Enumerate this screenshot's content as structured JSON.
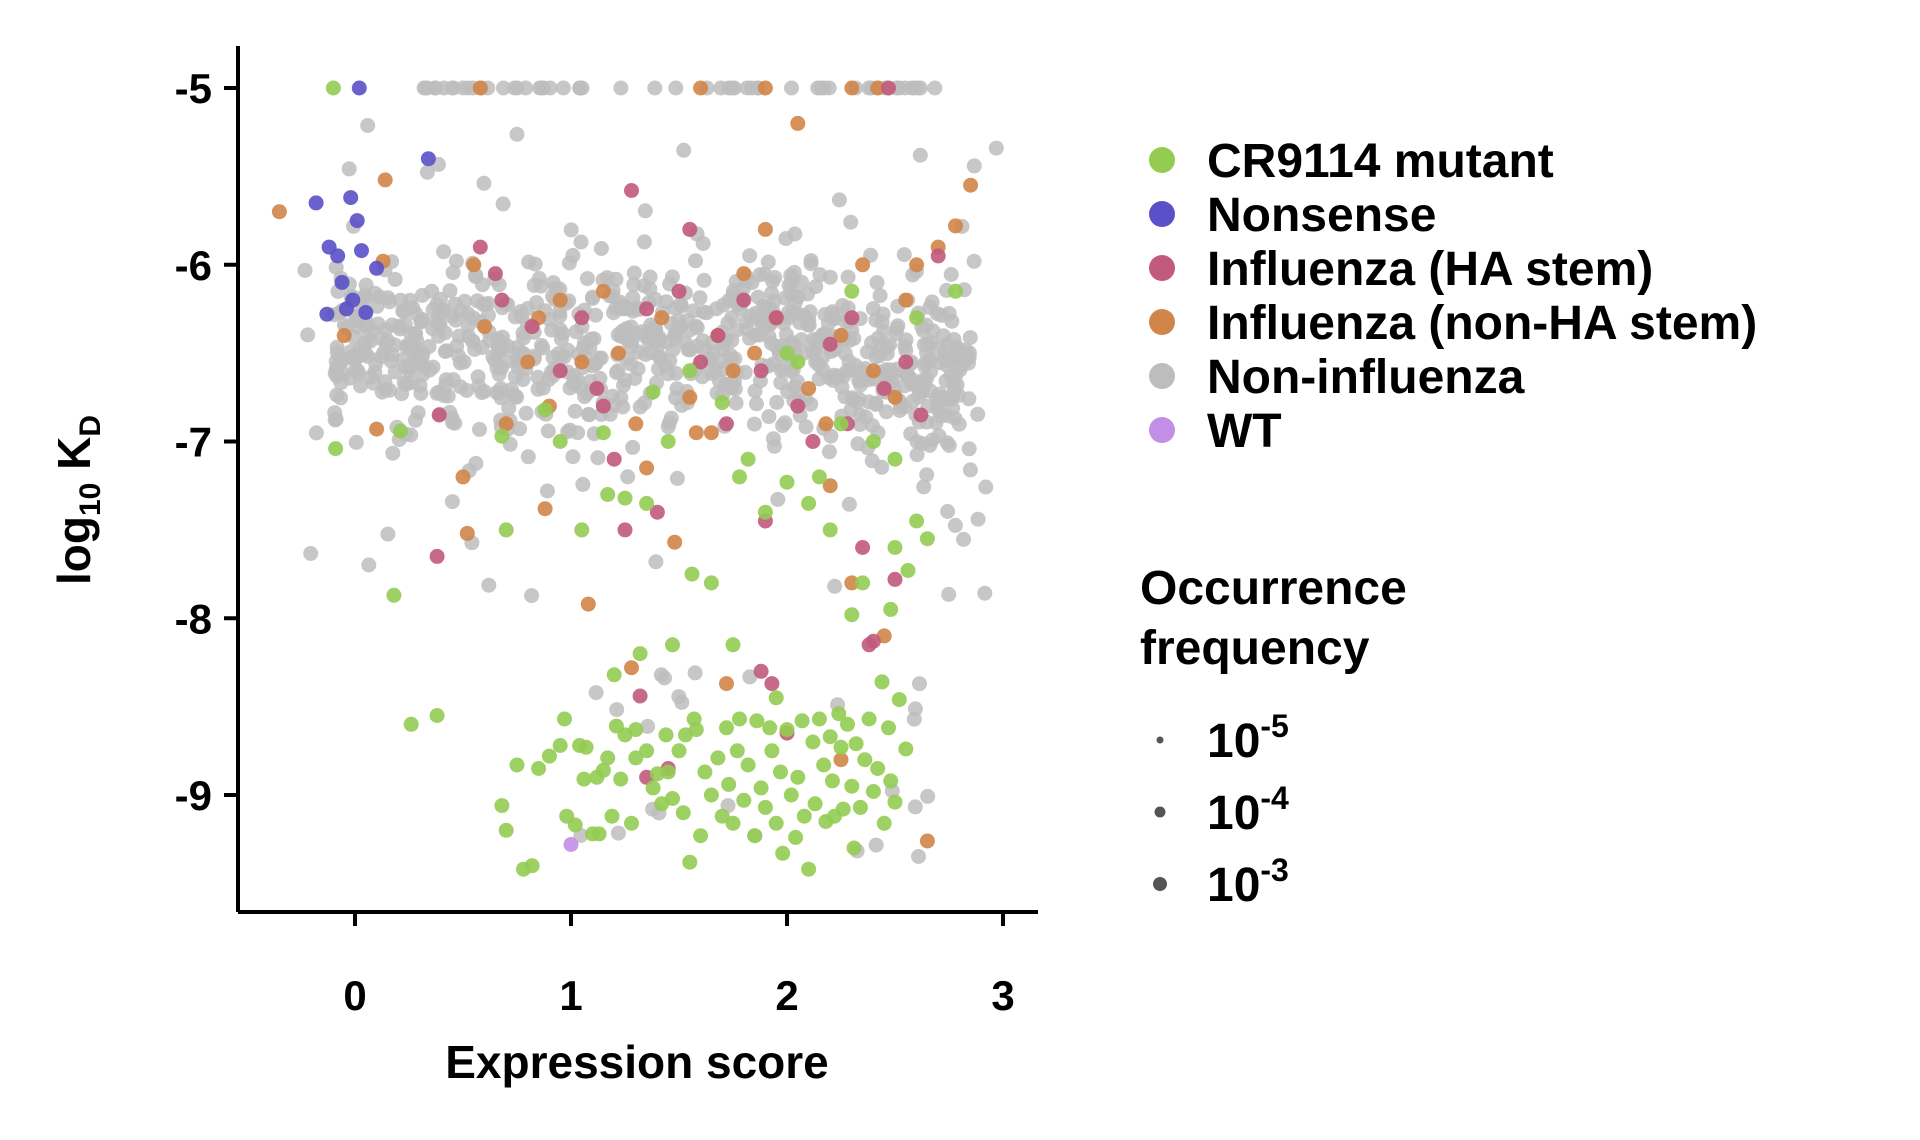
{
  "chart_data": {
    "type": "scatter",
    "title": "",
    "xlabel": "Expression score",
    "ylabel_base": "log",
    "ylabel_sub": "10",
    "ylabel_k": " K",
    "ylabel_ksub": "D",
    "xlim": [
      -0.55,
      3.2
    ],
    "ylim": [
      -9.68,
      -4.77
    ],
    "x_ticks": [
      0,
      1,
      2,
      3
    ],
    "x_tick_labels": [
      "0",
      "1",
      "2",
      "3"
    ],
    "y_ticks": [
      -5,
      -6,
      -7,
      -8,
      -9
    ],
    "y_tick_labels": [
      "-5",
      "-6",
      "-7",
      "-8",
      "-9"
    ],
    "grid": false,
    "legend_position": "right",
    "series": [
      {
        "name": "CR9114 mutant",
        "color": "#94cc52"
      },
      {
        "name": "Nonsense",
        "color": "#5a50c8"
      },
      {
        "name": "Influenza (HA stem)",
        "color": "#c15a7c"
      },
      {
        "name": "Influenza (non-HA stem)",
        "color": "#d28548"
      },
      {
        "name": "Non-influenza",
        "color": "#bdbdbd"
      },
      {
        "name": "WT",
        "color": "#c38ee6"
      }
    ],
    "size_legend": {
      "title_line1": "Occurrence",
      "title_line2": "frequency",
      "base": "10",
      "entries": [
        {
          "exponent": "-5",
          "marker_color": "#555555"
        },
        {
          "exponent": "-4",
          "marker_color": "#555555"
        },
        {
          "exponent": "-3",
          "marker_color": "#555555"
        }
      ]
    },
    "points": {
      "CR9114 mutant": [
        [
          -0.1,
          -5.0
        ],
        [
          -0.09,
          -7.04
        ],
        [
          0.21,
          -6.94
        ],
        [
          0.18,
          -7.87
        ],
        [
          0.26,
          -8.6
        ],
        [
          0.38,
          -8.55
        ],
        [
          0.68,
          -6.97
        ],
        [
          0.7,
          -7.5
        ],
        [
          0.68,
          -9.06
        ],
        [
          0.7,
          -9.2
        ],
        [
          0.75,
          -8.83
        ],
        [
          0.78,
          -9.42
        ],
        [
          0.82,
          -9.4
        ],
        [
          0.85,
          -8.85
        ],
        [
          0.9,
          -8.78
        ],
        [
          0.95,
          -8.72
        ],
        [
          0.98,
          -9.12
        ],
        [
          0.97,
          -8.57
        ],
        [
          1.02,
          -9.17
        ],
        [
          1.04,
          -8.72
        ],
        [
          1.06,
          -8.91
        ],
        [
          1.07,
          -8.73
        ],
        [
          1.1,
          -9.22
        ],
        [
          1.12,
          -8.9
        ],
        [
          1.13,
          -9.22
        ],
        [
          1.15,
          -8.86
        ],
        [
          1.17,
          -8.79
        ],
        [
          1.19,
          -9.12
        ],
        [
          1.2,
          -8.32
        ],
        [
          1.21,
          -8.61
        ],
        [
          1.23,
          -8.91
        ],
        [
          1.25,
          -8.66
        ],
        [
          1.28,
          -9.16
        ],
        [
          1.3,
          -8.79
        ],
        [
          1.3,
          -8.63
        ],
        [
          1.32,
          -8.2
        ],
        [
          1.35,
          -8.75
        ],
        [
          1.38,
          -8.96
        ],
        [
          1.4,
          -8.88
        ],
        [
          1.42,
          -9.05
        ],
        [
          1.44,
          -8.66
        ],
        [
          1.45,
          -8.87
        ],
        [
          1.47,
          -9.02
        ],
        [
          1.5,
          -8.75
        ],
        [
          1.52,
          -9.1
        ],
        [
          1.53,
          -8.66
        ],
        [
          1.55,
          -9.38
        ],
        [
          1.57,
          -8.57
        ],
        [
          1.6,
          -9.23
        ],
        [
          1.58,
          -8.63
        ],
        [
          1.62,
          -8.87
        ],
        [
          1.65,
          -9.0
        ],
        [
          1.68,
          -8.79
        ],
        [
          1.7,
          -9.12
        ],
        [
          1.72,
          -8.62
        ],
        [
          1.73,
          -8.94
        ],
        [
          1.75,
          -9.16
        ],
        [
          1.77,
          -8.75
        ],
        [
          1.78,
          -8.57
        ],
        [
          1.8,
          -9.03
        ],
        [
          1.82,
          -8.83
        ],
        [
          1.85,
          -9.23
        ],
        [
          1.86,
          -8.58
        ],
        [
          1.88,
          -8.96
        ],
        [
          1.9,
          -9.07
        ],
        [
          1.92,
          -8.62
        ],
        [
          1.93,
          -8.75
        ],
        [
          1.95,
          -9.16
        ],
        [
          1.97,
          -8.87
        ],
        [
          1.98,
          -9.33
        ],
        [
          2.0,
          -8.63
        ],
        [
          2.02,
          -9.0
        ],
        [
          2.04,
          -9.24
        ],
        [
          2.05,
          -8.9
        ],
        [
          2.07,
          -8.58
        ],
        [
          2.08,
          -9.12
        ],
        [
          2.1,
          -9.42
        ],
        [
          2.12,
          -8.7
        ],
        [
          2.13,
          -9.05
        ],
        [
          2.15,
          -8.57
        ],
        [
          2.17,
          -8.83
        ],
        [
          2.18,
          -9.15
        ],
        [
          2.2,
          -8.67
        ],
        [
          2.21,
          -8.92
        ],
        [
          2.22,
          -9.12
        ],
        [
          2.24,
          -8.54
        ],
        [
          2.25,
          -8.73
        ],
        [
          2.26,
          -9.08
        ],
        [
          2.28,
          -8.6
        ],
        [
          2.3,
          -8.95
        ],
        [
          2.31,
          -9.3
        ],
        [
          2.32,
          -8.71
        ],
        [
          2.34,
          -9.07
        ],
        [
          2.36,
          -8.8
        ],
        [
          2.38,
          -8.57
        ],
        [
          2.4,
          -8.98
        ],
        [
          2.42,
          -8.85
        ],
        [
          2.44,
          -8.36
        ],
        [
          2.45,
          -9.16
        ],
        [
          2.47,
          -8.62
        ],
        [
          2.48,
          -8.92
        ],
        [
          2.5,
          -9.04
        ],
        [
          2.52,
          -8.46
        ],
        [
          2.55,
          -8.74
        ],
        [
          2.56,
          -7.73
        ],
        [
          2.6,
          -7.45
        ],
        [
          2.5,
          -7.6
        ],
        [
          2.48,
          -7.95
        ],
        [
          2.35,
          -7.8
        ],
        [
          2.3,
          -7.98
        ],
        [
          2.2,
          -7.5
        ],
        [
          2.1,
          -7.35
        ],
        [
          2.0,
          -7.23
        ],
        [
          1.9,
          -7.4
        ],
        [
          1.75,
          -8.15
        ],
        [
          1.65,
          -7.8
        ],
        [
          1.56,
          -7.75
        ],
        [
          1.47,
          -8.15
        ],
        [
          1.35,
          -7.35
        ],
        [
          1.25,
          -7.32
        ],
        [
          1.17,
          -7.3
        ],
        [
          1.05,
          -7.5
        ],
        [
          0.88,
          -6.82
        ],
        [
          0.95,
          -7.0
        ],
        [
          1.15,
          -6.95
        ],
        [
          1.38,
          -6.72
        ],
        [
          1.55,
          -6.6
        ],
        [
          1.7,
          -6.78
        ],
        [
          1.82,
          -7.1
        ],
        [
          2.0,
          -6.5
        ],
        [
          2.25,
          -6.9
        ],
        [
          2.4,
          -7.0
        ],
        [
          2.6,
          -6.3
        ],
        [
          2.78,
          -6.15
        ],
        [
          2.3,
          -6.15
        ],
        [
          2.05,
          -6.55
        ],
        [
          1.78,
          -7.2
        ],
        [
          1.45,
          -7.0
        ],
        [
          2.15,
          -7.2
        ],
        [
          2.65,
          -7.55
        ],
        [
          2.5,
          -7.1
        ],
        [
          1.95,
          -8.45
        ]
      ],
      "Nonsense": [
        [
          -0.18,
          -5.65
        ],
        [
          -0.13,
          -6.28
        ],
        [
          -0.12,
          -5.9
        ],
        [
          -0.08,
          -5.95
        ],
        [
          -0.06,
          -6.1
        ],
        [
          -0.04,
          -6.25
        ],
        [
          -0.02,
          -5.62
        ],
        [
          -0.01,
          -6.2
        ],
        [
          0.01,
          -5.75
        ],
        [
          0.03,
          -5.92
        ],
        [
          0.05,
          -6.27
        ],
        [
          0.1,
          -6.02
        ],
        [
          0.02,
          -5.0
        ],
        [
          0.34,
          -5.4
        ]
      ],
      "Influenza (HA stem)": [
        [
          0.38,
          -7.65
        ],
        [
          0.39,
          -6.85
        ],
        [
          0.58,
          -5.9
        ],
        [
          0.65,
          -6.05
        ],
        [
          0.82,
          -6.35
        ],
        [
          0.95,
          -6.6
        ],
        [
          1.05,
          -6.3
        ],
        [
          1.12,
          -6.7
        ],
        [
          1.2,
          -7.1
        ],
        [
          1.25,
          -7.5
        ],
        [
          1.28,
          -5.58
        ],
        [
          1.35,
          -6.25
        ],
        [
          1.4,
          -7.4
        ],
        [
          1.5,
          -6.15
        ],
        [
          1.55,
          -5.8
        ],
        [
          1.6,
          -6.55
        ],
        [
          1.68,
          -6.4
        ],
        [
          1.72,
          -6.9
        ],
        [
          1.8,
          -6.2
        ],
        [
          1.88,
          -6.6
        ],
        [
          1.95,
          -6.3
        ],
        [
          2.05,
          -6.8
        ],
        [
          2.12,
          -7.0
        ],
        [
          2.2,
          -6.45
        ],
        [
          2.28,
          -6.9
        ],
        [
          2.35,
          -7.6
        ],
        [
          2.4,
          -8.13
        ],
        [
          2.45,
          -6.7
        ],
        [
          2.5,
          -7.78
        ],
        [
          2.55,
          -6.55
        ],
        [
          2.62,
          -6.85
        ],
        [
          2.7,
          -5.95
        ],
        [
          1.32,
          -8.44
        ],
        [
          1.35,
          -8.9
        ],
        [
          1.45,
          -8.85
        ],
        [
          1.88,
          -8.3
        ],
        [
          1.93,
          -8.37
        ],
        [
          2.0,
          -8.65
        ],
        [
          2.38,
          -8.15
        ],
        [
          2.47,
          -5.0
        ],
        [
          1.9,
          -7.45
        ],
        [
          2.3,
          -6.3
        ],
        [
          1.15,
          -6.8
        ],
        [
          0.68,
          -6.2
        ]
      ],
      "Influenza (non-HA stem)": [
        [
          -0.35,
          -5.7
        ],
        [
          -0.05,
          -6.4
        ],
        [
          0.1,
          -6.93
        ],
        [
          0.13,
          -5.98
        ],
        [
          0.14,
          -5.52
        ],
        [
          0.5,
          -7.2
        ],
        [
          0.52,
          -7.52
        ],
        [
          0.55,
          -6.0
        ],
        [
          0.6,
          -6.35
        ],
        [
          0.7,
          -6.9
        ],
        [
          0.8,
          -6.55
        ],
        [
          0.88,
          -7.38
        ],
        [
          0.9,
          -6.8
        ],
        [
          0.95,
          -6.2
        ],
        [
          1.08,
          -7.92
        ],
        [
          1.15,
          -6.15
        ],
        [
          1.22,
          -6.5
        ],
        [
          1.28,
          -8.28
        ],
        [
          1.3,
          -6.9
        ],
        [
          1.35,
          -7.15
        ],
        [
          1.42,
          -6.3
        ],
        [
          1.48,
          -7.57
        ],
        [
          1.55,
          -6.75
        ],
        [
          1.6,
          -5.0
        ],
        [
          1.65,
          -6.95
        ],
        [
          1.68,
          -6.4
        ],
        [
          1.75,
          -6.6
        ],
        [
          1.8,
          -6.05
        ],
        [
          1.85,
          -6.5
        ],
        [
          1.9,
          -5.8
        ],
        [
          1.95,
          -6.3
        ],
        [
          2.05,
          -5.2
        ],
        [
          2.1,
          -6.7
        ],
        [
          2.18,
          -6.9
        ],
        [
          2.25,
          -6.4
        ],
        [
          2.3,
          -7.8
        ],
        [
          2.35,
          -6.0
        ],
        [
          2.4,
          -6.6
        ],
        [
          2.45,
          -8.1
        ],
        [
          2.5,
          -6.75
        ],
        [
          2.55,
          -6.2
        ],
        [
          2.6,
          -6.0
        ],
        [
          2.65,
          -9.26
        ],
        [
          2.7,
          -5.9
        ],
        [
          2.78,
          -5.78
        ],
        [
          2.85,
          -5.55
        ],
        [
          0.58,
          -5.0
        ],
        [
          1.9,
          -5.0
        ],
        [
          2.3,
          -5.0
        ],
        [
          2.42,
          -5.0
        ],
        [
          1.72,
          -8.37
        ],
        [
          2.25,
          -8.8
        ],
        [
          0.85,
          -6.3
        ],
        [
          1.05,
          -6.55
        ],
        [
          1.58,
          -6.95
        ],
        [
          2.2,
          -7.25
        ]
      ],
      "WT": [
        [
          1.0,
          -9.28
        ]
      ]
    }
  }
}
